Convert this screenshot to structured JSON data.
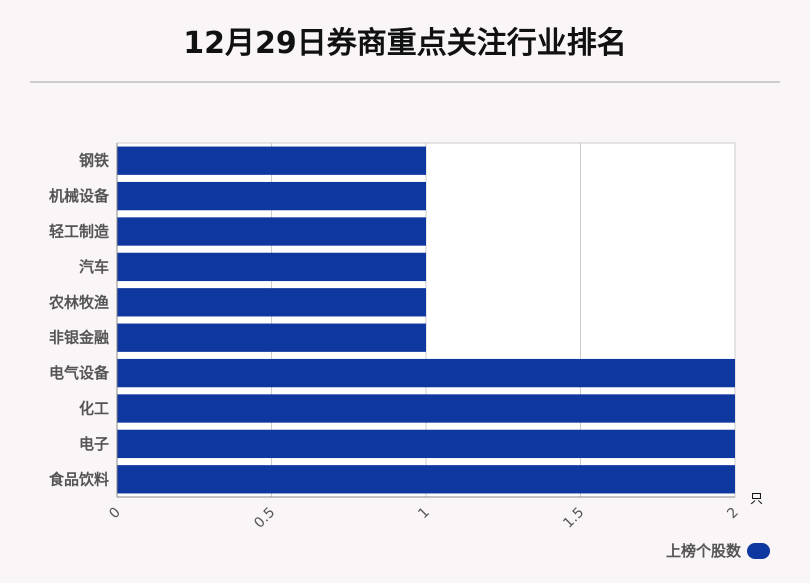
{
  "title": "12月29日券商重点关注行业排名",
  "chart_data": {
    "type": "bar",
    "orientation": "horizontal",
    "categories": [
      "钢铁",
      "机械设备",
      "轻工制造",
      "汽车",
      "农林牧渔",
      "非银金融",
      "电气设备",
      "化工",
      "电子",
      "食品饮料"
    ],
    "series": [
      {
        "name": "上榜个股数",
        "values": [
          1,
          1,
          1,
          1,
          1,
          1,
          2,
          2,
          2,
          2
        ]
      }
    ],
    "x_ticks": [
      0,
      0.5,
      1,
      1.5,
      2
    ],
    "x_tick_labels": [
      "0",
      "0.5",
      "1",
      "1.5",
      "2"
    ],
    "xlim": [
      0,
      2
    ],
    "x_unit": "只",
    "grid": true,
    "legend_position": "bottom-right",
    "bar_color": "#0f37a0"
  }
}
